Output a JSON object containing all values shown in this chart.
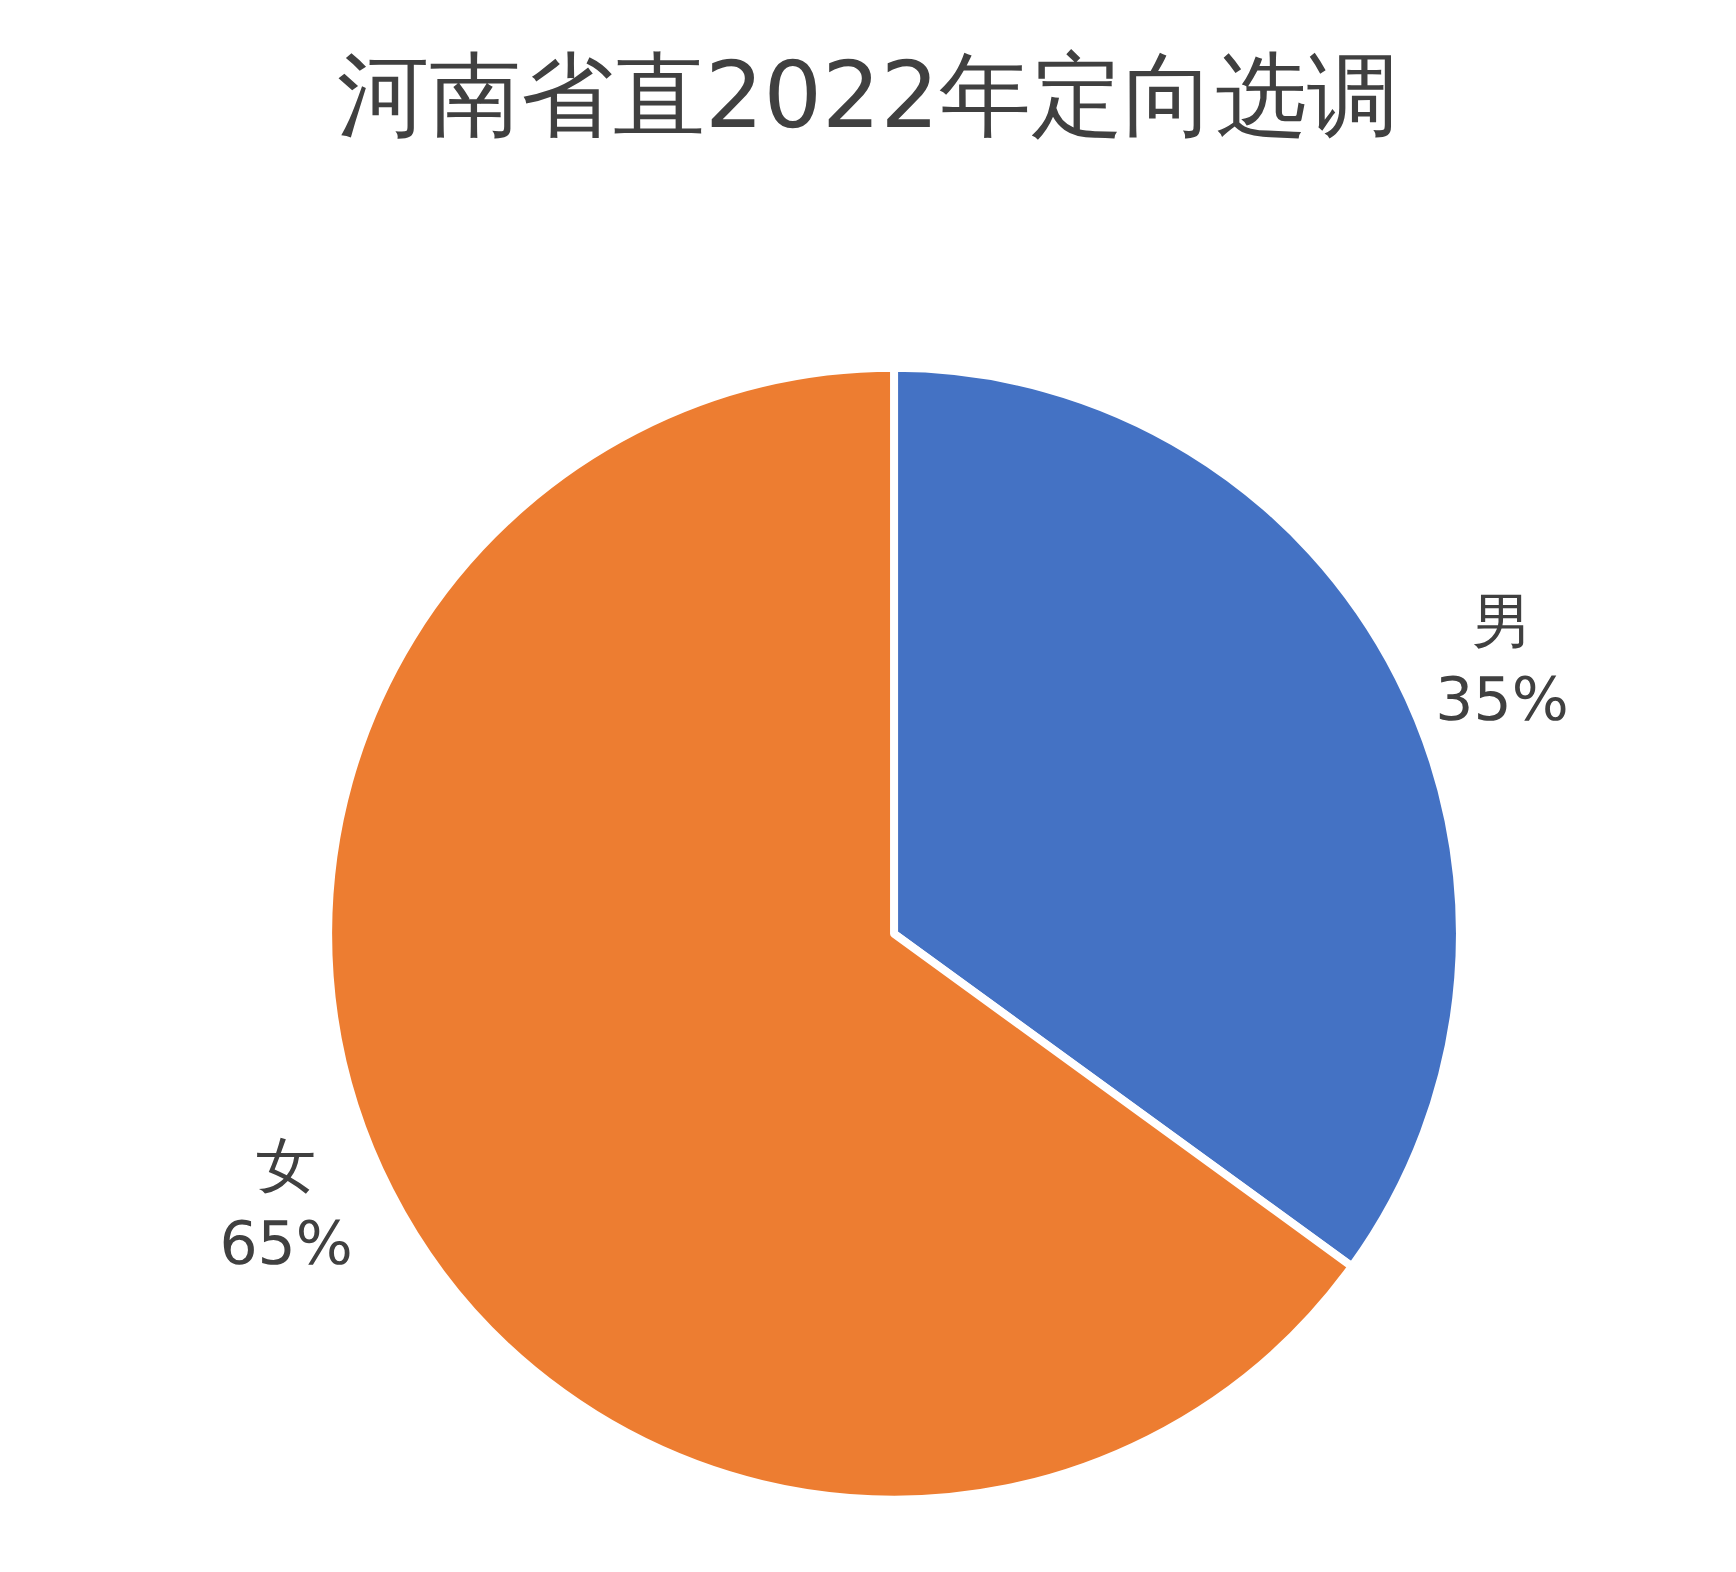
{
  "chart_data": {
    "type": "pie",
    "title": "河南省直2022年定向选调",
    "categories": [
      "男",
      "女"
    ],
    "values": [
      35,
      65
    ],
    "colors": [
      "#4472c4",
      "#ed7d31"
    ],
    "value_labels": [
      "35%",
      "65%"
    ],
    "legend": false
  }
}
